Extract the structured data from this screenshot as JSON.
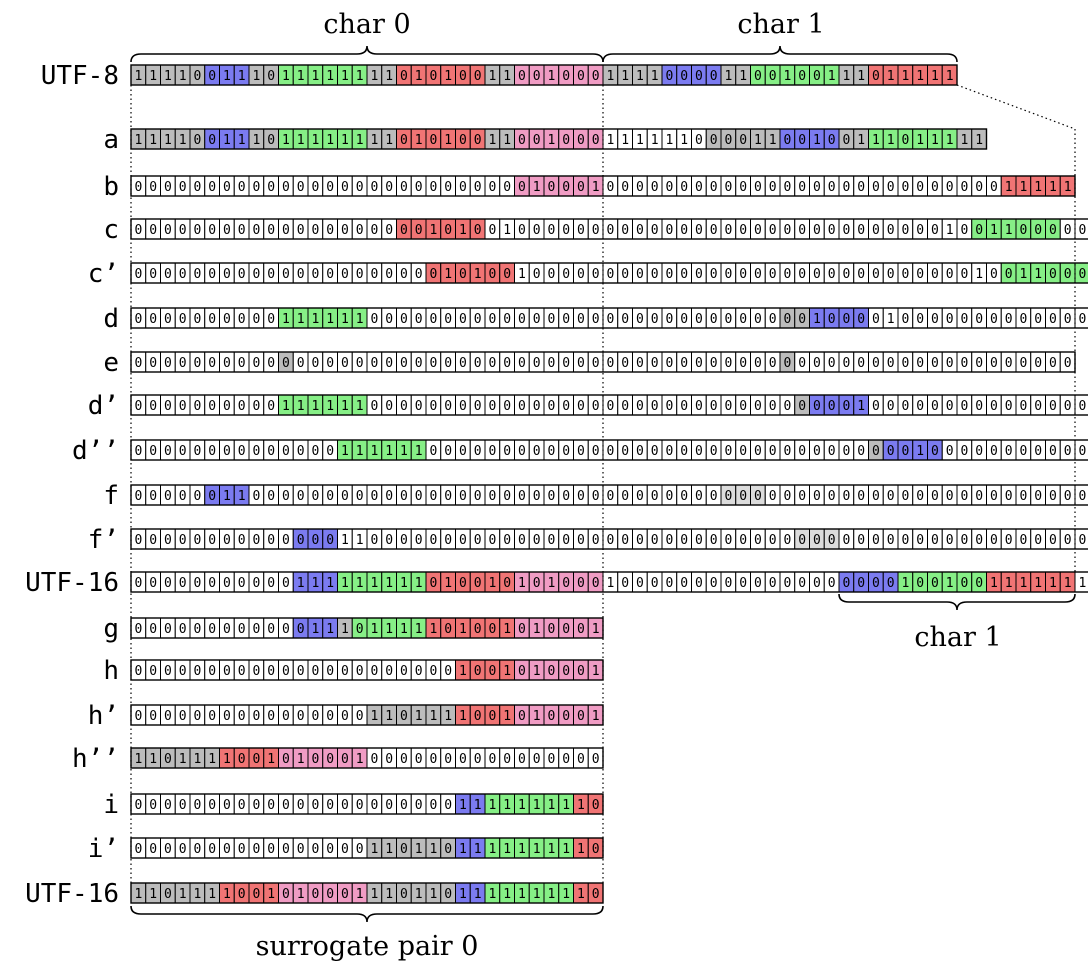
{
  "colors": {
    "gray": "#bcbcbc",
    "blue": "#7b7bf0",
    "green": "#86ef86",
    "red": "#f07474",
    "pink": "#f09cc4",
    "lightgray": "#dcdcdc",
    "white": "#ffffff"
  },
  "brace_labels": {
    "char0_top": "char 0",
    "char1_top": "char 1",
    "char1_bottom": "char 1",
    "surrogate": "surrogate pair 0"
  },
  "rows": [
    {
      "label": "UTF-8",
      "bits": "11110011101111111101010011001000111100001100100111011111",
      "colors": "gggggbbbggGGGGGGggRRRRRRggPPPPPPggggbbbbggGGGGGGggRRRRRR"
    },
    {
      "label": "a",
      "bits": "1111001110111111110101001100100011111100001100100111011111",
      "colors": "gggggbbbggGGGGGGggRRRRRRggPPPPPPwwwwwwwgggggbbbbggGGGGGGggRRRRRR"
    },
    {
      "label": "b",
      "bits": "0000000000000000000000000001000100000000000000000000000000011111",
      "colors": "wwwwwwwwwwwwwwwwwwwwwwwwwwPPPPPPwwwwwwwwwwwwwwwwwwwwwwwwwwwRRRRRR"
    },
    {
      "label": "c",
      "bits": "0000000000000000000010100100000000000000000000000000000100110000000",
      "colors": "wwwwwwwwwwwwwwwwwwRRRRRRwwwwwwwwwwwwwwwwwwwwwwwwwwwwwwwwwGGGGGGwwwwwww"
    },
    {
      "label": "c’",
      "bits": "0000000000000000000001010010000000000000000000000000000001001100000",
      "colors": "wwwwwwwwwwwwwwwwwwwwRRRRRRwwwwwwwwwwwwwwwwwwwwwwwwwwwwwwwwwGGGGGGwwwww"
    },
    {
      "label": "d",
      "bits": "0000000000111111000000000000000000000000000000100001000000000000000000",
      "colors": "wwwwwwwwwwGGGGGGwwwwwwwwwwwwwwwwwwwwwwwwwwwwggbbbbwwwwwwwwwwwwwwwwww"
    },
    {
      "label": "e",
      "bits": "0000000000000000000000000000000000000000000000000000000000000000",
      "colors": "wwwwwwwwwwgwwwwwwwwwwwwwwwwwwwwwwwwwwwwwwwwwgwwwwwwwwwwwwwwwwwwwww"
    },
    {
      "label": "d’",
      "bits": "0000000000111111000000000000000000000000000000000100000000000000000000",
      "colors": "wwwwwwwwwwGGGGGGwwwwwwwwwwwwwwwwwwwwwwwwwwwwwgbbbbwwwwwwwwwwwwwwwwwww"
    },
    {
      "label": "d’’",
      "bits": "0000000000000011111100000000000000000000000000000000010000000000000000",
      "colors": "wwwwwwwwwwwwwwGGGGGGwwwwwwwwwwwwwwwwwwwwwwwwwwwwwwgbbbbwwwwwwwwwwwwwww"
    },
    {
      "label": "f",
      "bits": "0000001100000000000000000000000000000000000000000000000000000000000000",
      "colors": "wwwwwbbbwwwwwwwwwwwwwwwwwwwwwwwwwwwwwwwwLLLwwwwwwwwwwwwwwwwwwwwwwwww"
    },
    {
      "label": "f’",
      "bits": "0000000000000011000000000000000000000000000000000000000000000000000000",
      "colors": "wwwwwwwwwwwbbbwwwwwwwwwwwwwwwwwwwwwwwwwwwwwwwLLLwwwwwwwwwwwwwwwwwwwww"
    },
    {
      "label": "UTF-16",
      "bits": "0000000000011111111101001010100010000000000000000000100100111111111",
      "colors": "wwwwwwwwwwwbbbGGGGGGRRRRRRPPPPPPwwwwwwwwwwwwwwwwbbbbGGGGGGRRRRRR"
    },
    {
      "label": "g",
      "bits": "00000000000011101111101001010001",
      "colors": "wwwwwwwwwwwbbbgGGGGGRRRRRRPPPPPP"
    },
    {
      "label": "h",
      "bits": "00000000000000000000001001010001",
      "colors": "wwwwwwwwwwwwwwwwwwwwwwRRRRPPPPPP"
    },
    {
      "label": "h’",
      "bits": "00000000000000001101111001010001",
      "colors": "wwwwwwwwwwwwwwwwggggggRRRRPPPPPP"
    },
    {
      "label": "h’’",
      "bits": "11011110010100010000000000000000",
      "colors": "ggggggRRRRPPPPPPwwwwwwwwwwwwwwww"
    },
    {
      "label": "i",
      "bits": "00000000000000000000001111111110",
      "colors": "wwwwwwwwwwwwwwwwwwwwwwbbGGGGGGRR"
    },
    {
      "label": "i’",
      "bits": "00000000000000001101101111111110",
      "colors": "wwwwwwwwwwwwwwwwggggggbbGGGGGGRR"
    },
    {
      "label": "UTF-16",
      "bits": "11011110010100011101101111111110",
      "colors": "ggggggRRRRPPPPPPggggggbbGGGGGGRR"
    }
  ]
}
